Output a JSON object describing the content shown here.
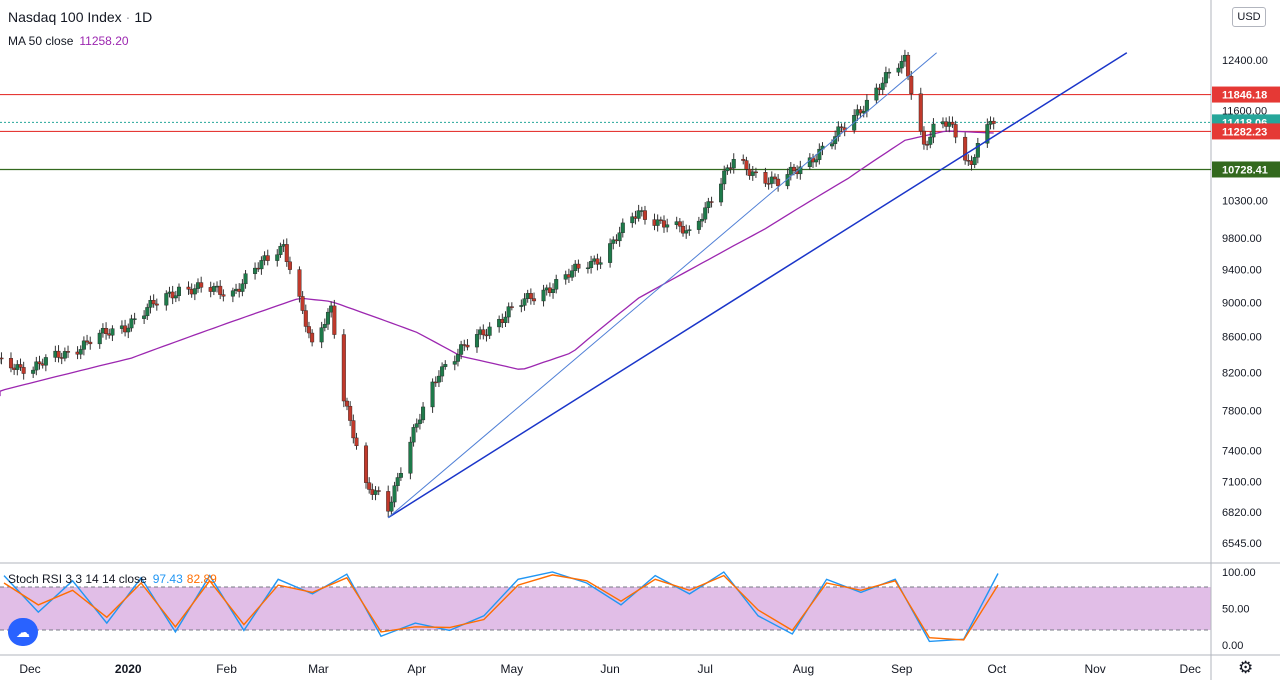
{
  "header": {
    "symbol_title": "Nasdaq 100 Index",
    "interval": "1D",
    "currency_button": "USD",
    "ma_label": "MA 50 close",
    "ma_value": "11258.20"
  },
  "stoch": {
    "label": "Stoch RSI 3 3 14 14 close",
    "k_value": "97.43",
    "d_value": "82.89"
  },
  "colors": {
    "up": "#26a69a",
    "down": "#ef5350",
    "candle_up": "#1e7a4a",
    "candle_down": "#c0392b",
    "ma": "#9c27b0",
    "resistance": "#e53935",
    "support_green": "#33691e",
    "trendline": "#1a35c9",
    "trendline_light": "#4f7fd6",
    "k": "#2196f3",
    "d": "#ff6d00",
    "band": "#e1bee7"
  },
  "icons": {
    "logo": "tradingview-logo-icon",
    "settings": "gear-icon"
  },
  "chart_data": [
    {
      "type": "candlestick",
      "title": "Nasdaq 100 Index · 1D",
      "ylim": [
        6400,
        12800
      ],
      "y_ticks": [
        6545,
        6820,
        7100,
        7400,
        7800,
        8200,
        8600,
        9000,
        9400,
        9800,
        10300,
        11600,
        12400
      ],
      "y_tick_labels": [
        "6545.00",
        "6820.00",
        "7100.00",
        "7400.00",
        "7800.00",
        "8200.00",
        "8600.00",
        "9000.00",
        "9400.00",
        "9800.00",
        "10300.00",
        "11600.00",
        "12400.00"
      ],
      "x_ticks": [
        "Dec",
        "2020",
        "Feb",
        "Mar",
        "Apr",
        "May",
        "Jun",
        "Jul",
        "Aug",
        "Sep",
        "Oct",
        "Nov",
        "Dec"
      ],
      "anchor_points": [
        {
          "date": "2019-11-15",
          "close": 8340
        },
        {
          "date": "2019-12-02",
          "close": 8250
        },
        {
          "date": "2019-12-31",
          "close": 8730
        },
        {
          "date": "2020-01-17",
          "close": 9170
        },
        {
          "date": "2020-02-03",
          "close": 9130
        },
        {
          "date": "2020-02-19",
          "close": 9720
        },
        {
          "date": "2020-02-28",
          "close": 8460
        },
        {
          "date": "2020-03-05",
          "close": 8950
        },
        {
          "date": "2020-03-09",
          "close": 7950
        },
        {
          "date": "2020-03-16",
          "close": 7020
        },
        {
          "date": "2020-03-20",
          "close": 6990
        },
        {
          "date": "2020-03-23",
          "close": 6880
        },
        {
          "date": "2020-04-08",
          "close": 8230
        },
        {
          "date": "2020-04-30",
          "close": 8890
        },
        {
          "date": "2020-05-29",
          "close": 9560
        },
        {
          "date": "2020-06-10",
          "close": 10140
        },
        {
          "date": "2020-06-26",
          "close": 9850
        },
        {
          "date": "2020-07-10",
          "close": 10840
        },
        {
          "date": "2020-07-24",
          "close": 10520
        },
        {
          "date": "2020-08-10",
          "close": 11130
        },
        {
          "date": "2020-09-02",
          "close": 12420
        },
        {
          "date": "2020-09-08",
          "close": 11070
        },
        {
          "date": "2020-09-11",
          "close": 11300
        },
        {
          "date": "2020-09-16",
          "close": 11400
        },
        {
          "date": "2020-09-23",
          "close": 10780
        },
        {
          "date": "2020-09-25",
          "close": 11160
        },
        {
          "date": "2020-09-30",
          "close": 11418
        }
      ],
      "ma50_points": [
        {
          "date": "2019-11-15",
          "value": 7950
        },
        {
          "date": "2020-01-02",
          "value": 8360
        },
        {
          "date": "2020-02-24",
          "value": 9050
        },
        {
          "date": "2020-03-05",
          "value": 9010
        },
        {
          "date": "2020-04-01",
          "value": 8650
        },
        {
          "date": "2020-04-15",
          "value": 8380
        },
        {
          "date": "2020-05-04",
          "value": 8230
        },
        {
          "date": "2020-05-20",
          "value": 8420
        },
        {
          "date": "2020-06-10",
          "value": 9050
        },
        {
          "date": "2020-07-01",
          "value": 9500
        },
        {
          "date": "2020-07-20",
          "value": 9920
        },
        {
          "date": "2020-08-15",
          "value": 10600
        },
        {
          "date": "2020-09-02",
          "value": 11150
        },
        {
          "date": "2020-09-15",
          "value": 11290
        },
        {
          "date": "2020-09-30",
          "value": 11258
        }
      ],
      "horizontal_levels": [
        {
          "value": 11846.18,
          "label": "11846.18",
          "color": "#e53935"
        },
        {
          "value": 11418.06,
          "label": "11418.06",
          "color": "#26a69a",
          "dotted": true
        },
        {
          "value": 11282.23,
          "label": "11282.23",
          "color": "#e53935"
        },
        {
          "value": 10728.41,
          "label": "10728.41",
          "color": "#33691e"
        }
      ],
      "trendlines": [
        {
          "from": {
            "date": "2020-03-23",
            "value": 6770
          },
          "to": {
            "date": "2020-11-11",
            "value": 12520
          },
          "color": "#1a35c9"
        },
        {
          "from": {
            "date": "2020-03-23",
            "value": 6770
          },
          "to": {
            "date": "2020-09-12",
            "value": 12520
          },
          "color": "#4f7fd6"
        }
      ]
    },
    {
      "type": "line",
      "title": "Stoch RSI 3 3 14 14 close",
      "ylim": [
        0,
        100
      ],
      "y_ticks": [
        0,
        50,
        100
      ],
      "y_tick_labels": [
        "0.00",
        "50.00",
        "100.00"
      ],
      "band": [
        20,
        80
      ],
      "series": [
        {
          "name": "K",
          "values": [
            95,
            45,
            88,
            30,
            92,
            18,
            95,
            20,
            90,
            70,
            97,
            12,
            30,
            20,
            40,
            90,
            100,
            85,
            55,
            95,
            70,
            100,
            40,
            15,
            90,
            72,
            90,
            5,
            8,
            98
          ]
        },
        {
          "name": "D",
          "values": [
            85,
            55,
            75,
            38,
            85,
            25,
            88,
            28,
            82,
            72,
            92,
            18,
            25,
            24,
            35,
            82,
            96,
            88,
            60,
            90,
            75,
            95,
            48,
            20,
            85,
            75,
            88,
            10,
            7,
            82
          ]
        }
      ]
    }
  ]
}
